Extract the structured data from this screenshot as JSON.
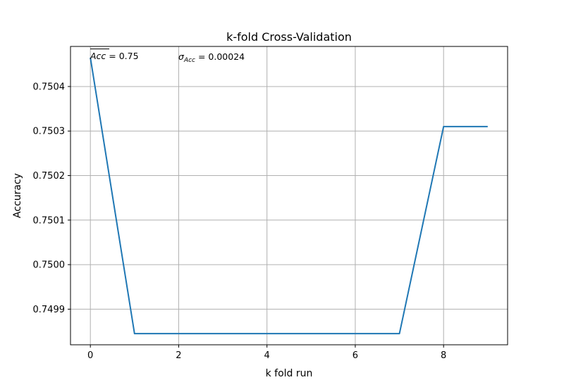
{
  "chart_data": {
    "type": "line",
    "title": "k-fold Cross-Validation",
    "xlabel": "k fold run",
    "ylabel": "Accuracy",
    "x": [
      0,
      1,
      2,
      3,
      4,
      5,
      6,
      7,
      8,
      9
    ],
    "series": [
      {
        "values": [
          0.750465,
          0.749845,
          0.749845,
          0.749845,
          0.749845,
          0.749845,
          0.749845,
          0.749845,
          0.75031,
          0.75031
        ],
        "color": "#1f77b4"
      }
    ],
    "xlim": [
      -0.45,
      9.45
    ],
    "ylim": [
      0.74982,
      0.75049
    ],
    "x_ticks": [
      0,
      2,
      4,
      6,
      8
    ],
    "x_tick_labels": [
      "0",
      "2",
      "4",
      "6",
      "8"
    ],
    "y_ticks": [
      0.7499,
      0.75,
      0.7501,
      0.7502,
      0.7503,
      0.7504
    ],
    "y_tick_labels": [
      "0.7499",
      "0.7500",
      "0.7501",
      "0.7502",
      "0.7503",
      "0.7504"
    ],
    "grid": true,
    "annotations": {
      "mean": {
        "symbol": "Acc",
        "text": " = 0.75"
      },
      "std": {
        "symbol": "σ",
        "subscript": "Acc",
        "text": " = 0.00024"
      }
    }
  }
}
